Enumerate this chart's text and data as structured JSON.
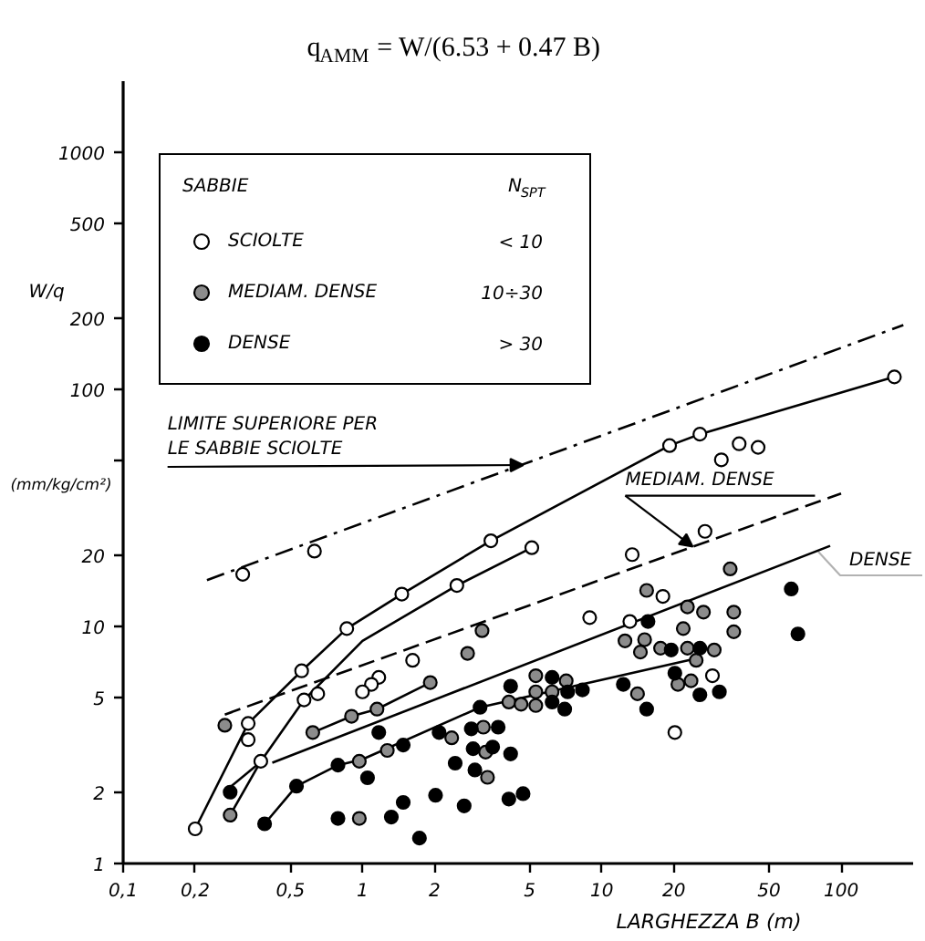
{
  "chart_data": {
    "type": "scatter",
    "title": "q$_{AMM}$ = W/(6.53 + 0.47 B)",
    "xlabel": "LARGHEZZA B (m)",
    "ylabel": "W/q",
    "legend_title": "SABBIE",
    "log": "xy",
    "xlim": [
      0.1,
      200
    ],
    "ylim": [
      1,
      2000
    ],
    "xticks": [
      {
        "value": 0.1,
        "label": "0,1"
      },
      {
        "value": 0.2,
        "label": "0,2"
      },
      {
        "value": 0.5,
        "label": "0,5"
      },
      1,
      2,
      5,
      10,
      20,
      50,
      100
    ],
    "yticks": [
      1,
      2,
      5,
      10,
      20,
      {
        "value": 50,
        "label": null
      },
      100,
      200,
      500,
      1000
    ],
    "legend": "top left",
    "annotations": [
      "N$_{SPT}$",
      "< 10",
      "10÷30",
      "> 30",
      "(mm/kg/cm²)",
      "DENSE",
      {
        "text": "LIMITE SUPERIORE PER LE SABBIE SCIOLTE",
        "x": 4.7,
        "y": 48
      },
      {
        "text": "MEDIAM. DENSE",
        "x": 24,
        "y": 21.7
      }
    ],
    "series": [
      {
        "type": "line",
        "color": "#000000",
        "line_style": "dashdot",
        "x": [
          0.224,
          182
        ],
        "values": [
          15.7,
          187
        ]
      },
      {
        "type": "line",
        "color": "#000000",
        "line_style": "dashed",
        "x": [
          0.266,
          100
        ],
        "values": [
          4.25,
          36.4
        ]
      },
      {
        "type": "line",
        "color": "#000000",
        "line_style": "solid",
        "x": [
          0.42,
          90
        ],
        "values": [
          2.66,
          21.9
        ]
      },
      {
        "type": "line",
        "color": "#000000",
        "line_style": "solid",
        "x": [
          0.28,
          0.37
        ],
        "values": [
          2.1,
          2.65
        ]
      },
      {
        "type": "line",
        "color": "#000000",
        "line_style": "solid",
        "x": [
          0.2,
          0.333,
          0.557,
          0.86,
          1.46,
          3.44,
          19.2,
          25.7,
          167
        ],
        "values": [
          1.4,
          3.9,
          6.5,
          9.8,
          13.7,
          23,
          58,
          64.8,
          113
        ]
      },
      {
        "type": "line",
        "color": "#000000",
        "line_style": "solid",
        "x": [
          0.28,
          0.376,
          0.57,
          1.0,
          2.48,
          5.1
        ],
        "values": [
          1.6,
          2.7,
          4.9,
          8.7,
          14.9,
          21.5
        ]
      },
      {
        "type": "line",
        "color": "#000000",
        "line_style": "solid",
        "x": [
          0.62,
          0.9,
          1.15,
          1.92
        ],
        "values": [
          3.57,
          4.18,
          4.48,
          5.8
        ]
      },
      {
        "type": "line",
        "color": "#000000",
        "line_style": "solid",
        "x": [
          0.39,
          0.53,
          0.79,
          1.0,
          3.1,
          24.5
        ],
        "values": [
          1.47,
          2.12,
          2.6,
          2.75,
          4.56,
          7.3
        ]
      },
      {
        "name": "SCIOLTE",
        "color": "#ffffff",
        "marker": "circle",
        "x": [
          0.2,
          0.316,
          0.63,
          3.44,
          1.46,
          0.86,
          0.557,
          2.48,
          1.62,
          1.17,
          1.09,
          1.0,
          0.65,
          0.57,
          0.333,
          0.333,
          0.376,
          8.9,
          13.1,
          167,
          19.2,
          25.7,
          31.6,
          37.5,
          45,
          27,
          13.4,
          5.1,
          18,
          29,
          20.2
        ],
        "values": [
          1.4,
          16.6,
          20.8,
          23,
          13.7,
          9.8,
          6.5,
          14.9,
          7.2,
          6.1,
          5.7,
          5.3,
          5.2,
          4.9,
          3.9,
          3.33,
          2.7,
          10.9,
          10.5,
          113,
          58,
          64.8,
          50.5,
          59,
          57,
          25.2,
          20.1,
          21.5,
          13.4,
          6.2,
          3.57
        ]
      },
      {
        "name": "MEDIAM. DENSE",
        "color": "#8c8c8c",
        "marker": "circle",
        "x": [
          0.266,
          0.28,
          3.16,
          2.75,
          0.62,
          0.9,
          1.15,
          1.92,
          0.97,
          0.97,
          1.27,
          2.36,
          3.33,
          3.27,
          3.2,
          4.09,
          4.6,
          5.3,
          7.1,
          5.3,
          6.2,
          5.3,
          14.1,
          12.5,
          15.1,
          14.5,
          17.6,
          22.8,
          29.5,
          24.8,
          22.8,
          26.6,
          21.9,
          35.6,
          35.6,
          15.4,
          34.4,
          20.8,
          23.6
        ],
        "values": [
          3.83,
          1.6,
          9.6,
          7.7,
          3.57,
          4.18,
          4.48,
          5.8,
          2.7,
          1.55,
          3.0,
          3.39,
          2.31,
          2.95,
          3.76,
          4.8,
          4.7,
          6.2,
          5.9,
          5.3,
          5.3,
          4.64,
          5.2,
          8.7,
          8.8,
          7.8,
          8.1,
          8.1,
          7.96,
          7.2,
          12.1,
          11.5,
          9.8,
          11.5,
          9.5,
          14.2,
          17.5,
          5.7,
          5.9
        ]
      },
      {
        "name": "DENSE",
        "color": "#000000",
        "marker": "circle",
        "x": [
          0.28,
          0.39,
          0.53,
          0.79,
          1.05,
          0.79,
          1.32,
          1.48,
          1.73,
          2.02,
          2.66,
          4.09,
          4.69,
          1.17,
          1.48,
          2.09,
          2.44,
          2.85,
          2.9,
          2.95,
          3.5,
          3.69,
          4.16,
          3.1,
          4.16,
          6.2,
          7.2,
          8.3,
          6.2,
          7.0,
          12.3,
          15.4,
          15.6,
          19.5,
          25.7,
          61.9,
          66,
          20.2,
          25.7,
          31
        ],
        "values": [
          2.0,
          1.47,
          2.12,
          2.6,
          2.3,
          1.55,
          1.57,
          1.81,
          1.28,
          1.94,
          1.75,
          1.87,
          1.97,
          3.57,
          3.16,
          3.57,
          2.65,
          3.7,
          3.05,
          2.48,
          3.1,
          3.76,
          2.9,
          4.56,
          5.6,
          6.1,
          5.3,
          5.4,
          4.8,
          4.48,
          5.7,
          4.48,
          10.5,
          7.96,
          8.1,
          14.4,
          9.3,
          6.35,
          5.15,
          5.3
        ]
      }
    ]
  }
}
